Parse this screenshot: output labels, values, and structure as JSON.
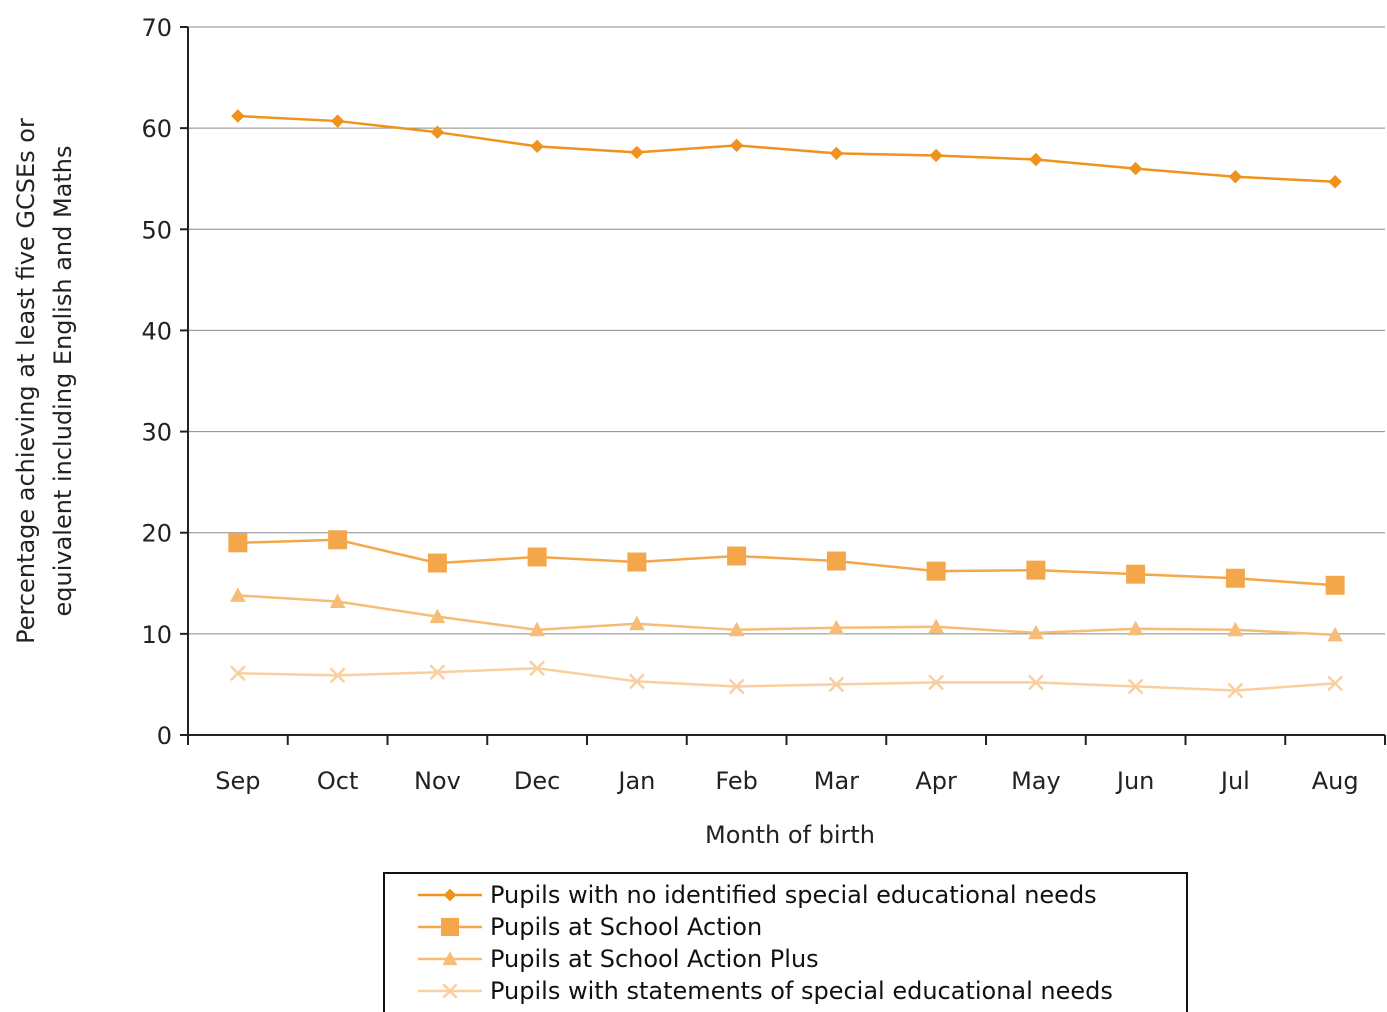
{
  "chart_data": {
    "type": "line",
    "title": "",
    "xlabel": "Month of birth",
    "ylabel_line1": "Percentage achieving at least five GCSEs or",
    "ylabel_line2": "equivalent including English and Maths",
    "categories": [
      "Sep",
      "Oct",
      "Nov",
      "Dec",
      "Jan",
      "Feb",
      "Mar",
      "Apr",
      "May",
      "Jun",
      "Jul",
      "Aug"
    ],
    "ylim": [
      0,
      70
    ],
    "yticks": [
      0,
      10,
      20,
      30,
      40,
      50,
      60,
      70
    ],
    "grid": true,
    "legend_position": "bottom",
    "series": [
      {
        "name": "Pupils with no identified special educational needs",
        "marker": "diamond",
        "color": "#f0931e",
        "values": [
          61.2,
          60.7,
          59.6,
          58.2,
          57.6,
          58.3,
          57.5,
          57.3,
          56.9,
          56.0,
          55.2,
          54.7
        ]
      },
      {
        "name": "Pupils at School Action",
        "marker": "square",
        "color": "#f4a74a",
        "values": [
          19.0,
          19.3,
          17.0,
          17.6,
          17.1,
          17.7,
          17.2,
          16.2,
          16.3,
          15.9,
          15.5,
          14.8
        ]
      },
      {
        "name": "Pupils at School Action Plus",
        "marker": "triangle",
        "color": "#f7bd78",
        "values": [
          13.8,
          13.2,
          11.7,
          10.4,
          11.0,
          10.4,
          10.6,
          10.7,
          10.1,
          10.5,
          10.4,
          9.9
        ]
      },
      {
        "name": "Pupils with statements of special educational needs",
        "marker": "x",
        "color": "#f9cfa0",
        "values": [
          6.1,
          5.9,
          6.2,
          6.6,
          5.3,
          4.8,
          5.0,
          5.2,
          5.2,
          4.8,
          4.4,
          5.1
        ]
      }
    ]
  }
}
